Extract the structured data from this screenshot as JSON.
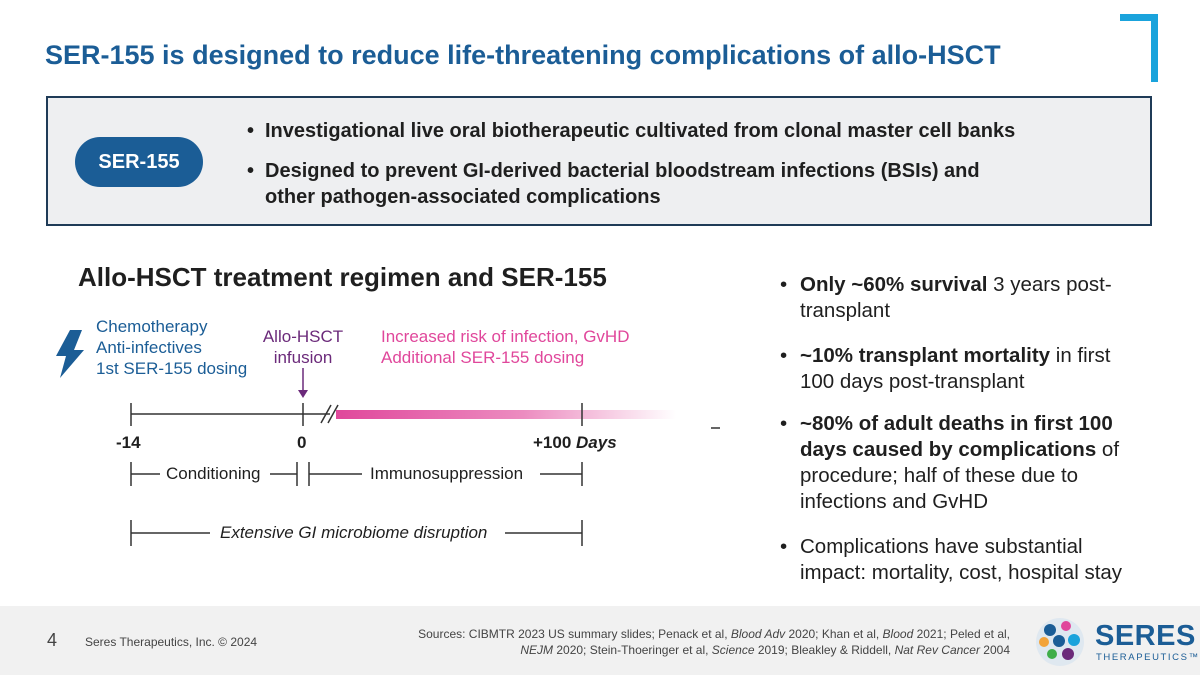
{
  "title": "SER-155 is designed to reduce life-threatening complications of allo-HSCT",
  "box": {
    "pill_label": "SER-155",
    "bullets": [
      "Investigational live oral biotherapeutic cultivated from clonal master cell banks",
      "Designed to prevent GI-derived bacterial bloodstream infections (BSIs) and",
      "other pathogen-associated complications"
    ]
  },
  "subtitle": "Allo-HSCT treatment regimen and SER-155",
  "timeline": {
    "left_labels": [
      "Chemotherapy",
      "Anti-infectives",
      "1st SER-155 dosing"
    ],
    "infusion_label": [
      "Allo-HSCT",
      "infusion"
    ],
    "risk_labels": [
      "Increased risk of infection, GvHD",
      "Additional SER-155 dosing"
    ],
    "ticks": [
      "-14",
      "0",
      "+100"
    ],
    "days_label": "Days",
    "phases": [
      "Conditioning",
      "Immunosuppression"
    ],
    "disruption": "Extensive GI microbiome disruption"
  },
  "right": {
    "b1_bold": "Only ~60% survival",
    "b1_rest": " 3 years post-",
    "b1_line2": "transplant",
    "b2_bold": "~10% transplant mortality",
    "b2_rest": " in first",
    "b2_line2": "100 days post-transplant",
    "b3_line1": "~80% of adult deaths in first 100",
    "b3_line2_bold": "days caused by complications",
    "b3_line2_rest": " of",
    "b3_line3": "procedure; half of these due to",
    "b3_line4": "infections and GvHD",
    "b4_line1": "Complications have substantial",
    "b4_line2": "impact: mortality, cost, hospital stay"
  },
  "footer": {
    "page": "4",
    "copyright": "Seres Therapeutics, Inc. © 2024",
    "sources_prefix": "Sources:  CIBMTR 2023 US summary slides; Penack et al, ",
    "j1": "Blood Adv",
    "t1": " 2020; Khan et al, ",
    "j2": "Blood",
    "t2": " 2021; Peled et al,",
    "j3": "NEJM",
    "t3": " 2020; Stein-Thoeringer et al, ",
    "j4": "Science",
    "t4": " 2019; Bleakley & Riddell, ",
    "j5": "Nat Rev Cancer",
    "t5": " 2004",
    "logo": "SERES",
    "logo_sub": "THERAPEUTICS",
    "logo_tm": "™"
  },
  "colors": {
    "navy": "#1b5d96",
    "accent": "#1aa3dc",
    "pink": "#e0479b",
    "purple": "#6b2a7a"
  }
}
